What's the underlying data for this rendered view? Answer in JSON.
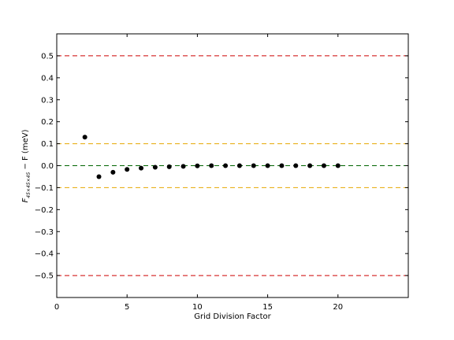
{
  "chart_data": {
    "type": "scatter",
    "title": "",
    "xlabel": "Grid Division Factor",
    "ylabel": {
      "main": "F",
      "sub": "45×45×45",
      "rest": " − F  (meV)"
    },
    "xlim": [
      0,
      25
    ],
    "ylim": [
      -0.6,
      0.6
    ],
    "xticks": [
      0,
      5,
      10,
      15,
      20
    ],
    "yticks": [
      0.5,
      0.4,
      0.3,
      0.2,
      0.1,
      0.0,
      -0.1,
      -0.2,
      -0.3,
      -0.4,
      -0.5
    ],
    "ytick_labels": [
      "0.5",
      "0.4",
      "0.3",
      "0.2",
      "0.1",
      "0.0",
      "−0.1",
      "−0.2",
      "−0.3",
      "−0.4",
      "−0.5"
    ],
    "xtick_labels": [
      "0",
      "5",
      "10",
      "15",
      "20"
    ],
    "grid": false,
    "reference_lines": [
      {
        "y": 0.5,
        "color": "#cc0000"
      },
      {
        "y": 0.1,
        "color": "#e6a800"
      },
      {
        "y": 0.0,
        "color": "#006400"
      },
      {
        "y": -0.1,
        "color": "#e6a800"
      },
      {
        "y": -0.5,
        "color": "#cc0000"
      }
    ],
    "series": [
      {
        "marker_color": "#000000",
        "x": [
          2,
          3,
          4,
          5,
          6,
          7,
          8,
          9,
          10,
          11,
          12,
          13,
          14,
          15,
          16,
          17,
          18,
          19,
          20
        ],
        "y": [
          0.13,
          -0.05,
          -0.03,
          -0.017,
          -0.011,
          -0.007,
          -0.005,
          -0.003,
          -0.001,
          0.0,
          0.0,
          0.0,
          0.0,
          0.0,
          0.0,
          0.0,
          0.0,
          0.0,
          0.0
        ]
      }
    ]
  }
}
